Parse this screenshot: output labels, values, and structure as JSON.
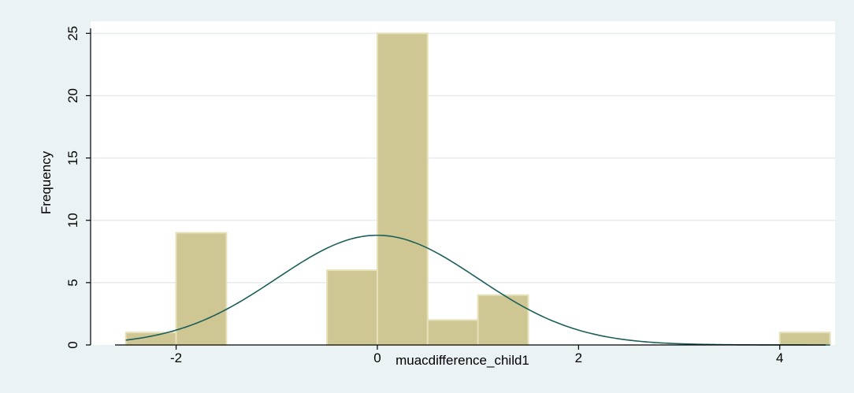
{
  "chart_data": {
    "type": "bar",
    "subtype": "histogram",
    "xlabel": "muacdifference_child1",
    "ylabel": "Frequency",
    "xlim": [
      -2.85,
      4.55
    ],
    "ylim": [
      0,
      25.4
    ],
    "xticks": [
      -2,
      0,
      2,
      4
    ],
    "yticks": [
      0,
      5,
      10,
      15,
      20,
      25
    ],
    "xtick_labels": [
      "-2",
      "0",
      "2",
      "4"
    ],
    "ytick_labels": [
      "0",
      "5",
      "10",
      "15",
      "20",
      "25"
    ],
    "grid": true,
    "bin_width": 0.5,
    "bins": [
      {
        "start": -2.5,
        "end": -2.0,
        "count": 1
      },
      {
        "start": -2.0,
        "end": -1.5,
        "count": 9
      },
      {
        "start": -0.5,
        "end": 0.0,
        "count": 6
      },
      {
        "start": 0.0,
        "end": 0.5,
        "count": 25
      },
      {
        "start": 0.5,
        "end": 1.0,
        "count": 2
      },
      {
        "start": 1.0,
        "end": 1.5,
        "count": 4
      },
      {
        "start": 4.0,
        "end": 4.5,
        "count": 1
      }
    ],
    "normal_curve": {
      "mean": 0.0,
      "sd": 1.0,
      "peak": 8.8,
      "x_range": [
        -2.5,
        4.5
      ]
    },
    "colors": {
      "background": "#eaf2f3",
      "plot_area": "#ffffff",
      "bar_fill": "#cfc793",
      "bar_edge": "#e6e1b9",
      "curve": "#1b5e5a",
      "grid": "#e4ecee",
      "axis": "#000000"
    }
  }
}
